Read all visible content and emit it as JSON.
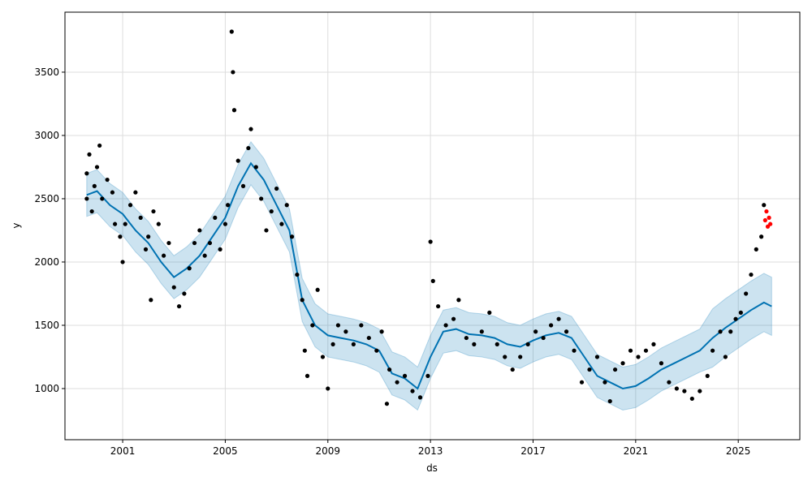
{
  "chart_data": {
    "type": "forecast",
    "x_label": "ds",
    "y_label": "y",
    "xlim": [
      1998.75,
      2027.4
    ],
    "xticks": [
      2001,
      2005,
      2009,
      2013,
      2017,
      2021,
      2025
    ],
    "ylim": [
      596,
      3974
    ],
    "yticks": [
      1000,
      1500,
      2000,
      2500,
      3000,
      3500
    ],
    "grid": true,
    "series": [
      {
        "type": "band",
        "color": "#0072B2",
        "x": [
          1999.6,
          2000,
          2000.5,
          2001,
          2001.5,
          2002,
          2002.5,
          2003,
          2003.5,
          2004,
          2004.5,
          2005,
          2005.5,
          2006,
          2006.5,
          2007,
          2007.5,
          2008,
          2008.5,
          2009,
          2009.5,
          2010,
          2010.5,
          2011,
          2011.5,
          2012,
          2012.5,
          2013,
          2013.5,
          2014,
          2014.5,
          2015,
          2015.5,
          2016,
          2016.5,
          2017,
          2017.5,
          2018,
          2018.5,
          2019,
          2019.5,
          2020,
          2020.5,
          2021,
          2021.5,
          2022,
          2022.5,
          2023,
          2023.5,
          2024,
          2024.5,
          2025,
          2025.5,
          2026,
          2026.3
        ],
        "lower": [
          2360,
          2390,
          2280,
          2210,
          2080,
          1980,
          1830,
          1710,
          1780,
          1880,
          2030,
          2180,
          2430,
          2610,
          2480,
          2280,
          2080,
          1530,
          1330,
          1250,
          1230,
          1210,
          1180,
          1130,
          950,
          910,
          830,
          1080,
          1280,
          1300,
          1260,
          1250,
          1230,
          1180,
          1160,
          1210,
          1250,
          1270,
          1230,
          1080,
          930,
          880,
          830,
          850,
          910,
          980,
          1030,
          1080,
          1130,
          1170,
          1250,
          1320,
          1390,
          1450,
          1420
        ],
        "values": [
          2700,
          2730,
          2620,
          2550,
          2420,
          2320,
          2170,
          2050,
          2120,
          2220,
          2370,
          2520,
          2770,
          2950,
          2820,
          2620,
          2420,
          1870,
          1670,
          1590,
          1570,
          1550,
          1520,
          1470,
          1290,
          1250,
          1170,
          1420,
          1620,
          1640,
          1600,
          1590,
          1570,
          1520,
          1500,
          1550,
          1590,
          1610,
          1570,
          1420,
          1270,
          1220,
          1170,
          1190,
          1250,
          1320,
          1370,
          1420,
          1470,
          1630,
          1710,
          1780,
          1850,
          1910,
          1880
        ]
      },
      {
        "type": "line",
        "color": "#0072B2",
        "x": [
          1999.6,
          2000,
          2000.5,
          2001,
          2001.5,
          2002,
          2002.5,
          2003,
          2003.5,
          2004,
          2004.5,
          2005,
          2005.5,
          2006,
          2006.5,
          2007,
          2007.5,
          2008,
          2008.5,
          2009,
          2009.5,
          2010,
          2010.5,
          2011,
          2011.5,
          2012,
          2012.5,
          2013,
          2013.5,
          2014,
          2014.5,
          2015,
          2015.5,
          2016,
          2016.5,
          2017,
          2017.5,
          2018,
          2018.5,
          2019,
          2019.5,
          2020,
          2020.5,
          2021,
          2021.5,
          2022,
          2022.5,
          2023,
          2023.5,
          2024,
          2024.5,
          2025,
          2025.5,
          2026,
          2026.3
        ],
        "values": [
          2530,
          2560,
          2450,
          2380,
          2250,
          2150,
          2000,
          1880,
          1950,
          2050,
          2200,
          2350,
          2600,
          2780,
          2650,
          2450,
          2250,
          1700,
          1500,
          1420,
          1400,
          1380,
          1350,
          1300,
          1120,
          1080,
          1000,
          1250,
          1450,
          1470,
          1430,
          1420,
          1400,
          1350,
          1330,
          1380,
          1420,
          1440,
          1400,
          1250,
          1100,
          1050,
          1000,
          1020,
          1080,
          1150,
          1200,
          1250,
          1300,
          1400,
          1480,
          1550,
          1620,
          1680,
          1650
        ]
      },
      {
        "type": "scatter",
        "color": "#000000",
        "x": [
          1999.6,
          1999.6,
          1999.7,
          1999.8,
          1999.9,
          2000.0,
          2000.1,
          2000.2,
          2000.4,
          2000.6,
          2000.7,
          2000.9,
          2001.0,
          2001.1,
          2001.3,
          2001.5,
          2001.7,
          2001.9,
          2002.0,
          2002.1,
          2002.2,
          2002.4,
          2002.6,
          2002.8,
          2003.0,
          2003.2,
          2003.4,
          2003.6,
          2003.8,
          2004.0,
          2004.2,
          2004.4,
          2004.6,
          2004.8,
          2005.0,
          2005.1,
          2005.25,
          2005.3,
          2005.35,
          2005.5,
          2005.7,
          2005.9,
          2006.0,
          2006.2,
          2006.4,
          2006.6,
          2006.8,
          2007.0,
          2007.2,
          2007.4,
          2007.6,
          2007.8,
          2008.0,
          2008.1,
          2008.2,
          2008.4,
          2008.6,
          2008.8,
          2009.0,
          2009.2,
          2009.4,
          2009.7,
          2010.0,
          2010.3,
          2010.6,
          2010.9,
          2011.1,
          2011.3,
          2011.4,
          2011.7,
          2012.0,
          2012.3,
          2012.6,
          2012.9,
          2013.0,
          2013.1,
          2013.3,
          2013.6,
          2013.9,
          2014.1,
          2014.4,
          2014.7,
          2015.0,
          2015.3,
          2015.6,
          2015.9,
          2016.2,
          2016.5,
          2016.8,
          2017.1,
          2017.4,
          2017.7,
          2018.0,
          2018.3,
          2018.6,
          2018.9,
          2019.2,
          2019.5,
          2019.8,
          2020.0,
          2020.2,
          2020.5,
          2020.8,
          2021.1,
          2021.4,
          2021.7,
          2022.0,
          2022.3,
          2022.6,
          2022.9,
          2023.2,
          2023.5,
          2023.8,
          2024.0,
          2024.3,
          2024.5,
          2024.7,
          2024.9,
          2025.1,
          2025.3,
          2025.5,
          2025.7,
          2025.9,
          2026.0
        ],
        "values": [
          2700,
          2500,
          2850,
          2400,
          2600,
          2750,
          2920,
          2500,
          2650,
          2550,
          2300,
          2200,
          2000,
          2300,
          2450,
          2550,
          2350,
          2100,
          2200,
          1700,
          2400,
          2300,
          2050,
          2150,
          1800,
          1650,
          1750,
          1950,
          2150,
          2250,
          2050,
          2150,
          2350,
          2100,
          2300,
          2450,
          3820,
          3500,
          3200,
          2800,
          2600,
          2900,
          3050,
          2750,
          2500,
          2250,
          2400,
          2580,
          2300,
          2450,
          2200,
          1900,
          1700,
          1300,
          1100,
          1500,
          1780,
          1250,
          1000,
          1350,
          1500,
          1450,
          1350,
          1500,
          1400,
          1300,
          1450,
          880,
          1150,
          1050,
          1100,
          980,
          930,
          1100,
          2160,
          1850,
          1650,
          1500,
          1550,
          1700,
          1400,
          1350,
          1450,
          1600,
          1350,
          1250,
          1150,
          1250,
          1350,
          1450,
          1400,
          1500,
          1550,
          1450,
          1300,
          1050,
          1150,
          1250,
          1050,
          900,
          1150,
          1200,
          1300,
          1250,
          1300,
          1350,
          1200,
          1050,
          1000,
          980,
          920,
          980,
          1100,
          1300,
          1450,
          1250,
          1450,
          1550,
          1600,
          1750,
          1900,
          2100,
          2200,
          2450
        ]
      },
      {
        "type": "scatter",
        "color": "#ff0000",
        "x": [
          2026.05,
          2026.1,
          2026.15,
          2026.2,
          2026.25
        ],
        "values": [
          2330,
          2400,
          2280,
          2350,
          2300
        ]
      }
    ]
  }
}
